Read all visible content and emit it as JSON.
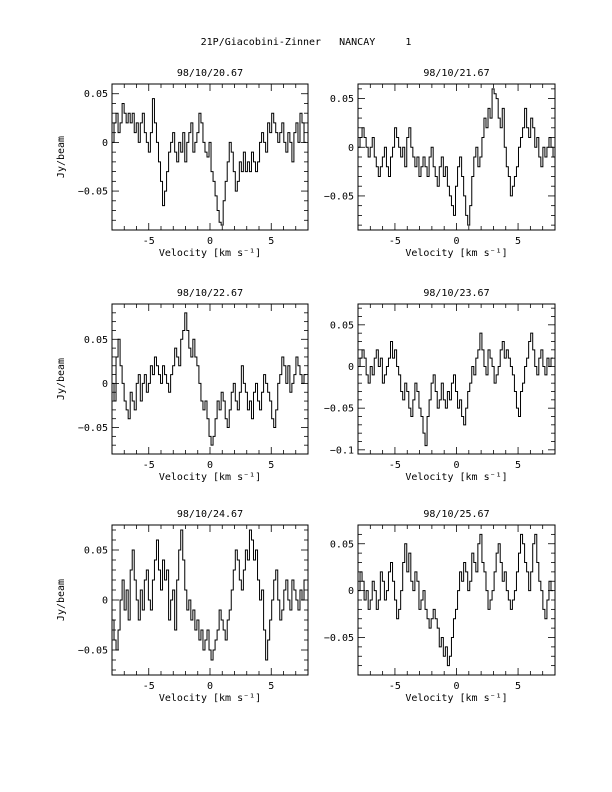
{
  "page_title": "21P/Giacobini-Zinner   NANCAY     1",
  "chart_data": [
    {
      "type": "line",
      "title": "98/10/20.67",
      "xlabel": "Velocity [km s⁻¹]",
      "ylabel": "Jy/beam",
      "xlim": [
        -8,
        8
      ],
      "ylim": [
        -0.09,
        0.06
      ],
      "x_ticks": [
        -5,
        0,
        5
      ],
      "y_ticks": [
        -0.05,
        0,
        0.05
      ],
      "y_tick_labels": [
        "−0.05",
        "0",
        "0.05"
      ],
      "series": [
        {
          "x_start": -8.0,
          "x_step": 0.165,
          "values": [
            0.0,
            0.02,
            0.03,
            0.01,
            0.02,
            0.04,
            0.03,
            0.02,
            0.03,
            0.02,
            0.03,
            0.01,
            0.02,
            0.0,
            0.02,
            0.03,
            0.01,
            0.0,
            -0.01,
            0.01,
            0.045,
            0.02,
            0.0,
            -0.02,
            -0.04,
            -0.065,
            -0.05,
            -0.03,
            -0.01,
            0.0,
            0.01,
            -0.01,
            -0.02,
            0.0,
            -0.01,
            0.01,
            -0.02,
            0.0,
            0.01,
            0.02,
            -0.01,
            0.0,
            0.01,
            0.03,
            0.02,
            0.0,
            -0.01,
            -0.015,
            0.0,
            -0.03,
            -0.04,
            -0.055,
            -0.07,
            -0.082,
            -0.085,
            -0.06,
            -0.04,
            -0.02,
            0.0,
            -0.01,
            -0.03,
            -0.05,
            -0.04,
            -0.02,
            -0.03,
            -0.01,
            -0.03,
            -0.02,
            -0.03,
            -0.01,
            -0.02,
            -0.03,
            -0.02,
            0.0,
            0.01,
            0.0,
            -0.01,
            0.02,
            0.01,
            0.03,
            0.02,
            0.01,
            0.0,
            0.01,
            0.02,
            0.0,
            -0.01,
            0.01,
            0.0,
            -0.02,
            0.01,
            0.02,
            0.0,
            0.03,
            0.02,
            0.0
          ]
        }
      ]
    },
    {
      "type": "line",
      "title": "98/10/21.67",
      "xlabel": "Velocity [km s⁻¹]",
      "ylabel": "",
      "xlim": [
        -8,
        8
      ],
      "ylim": [
        -0.085,
        0.065
      ],
      "x_ticks": [
        -5,
        0,
        5
      ],
      "y_ticks": [
        -0.05,
        0,
        0.05
      ],
      "y_tick_labels": [
        "−0.05",
        "0",
        "0.05"
      ],
      "series": [
        {
          "x_start": -8.0,
          "x_step": 0.165,
          "values": [
            0.0,
            0.01,
            0.02,
            0.01,
            0.0,
            -0.01,
            0.0,
            0.01,
            -0.01,
            -0.02,
            -0.03,
            -0.02,
            -0.01,
            0.0,
            -0.02,
            -0.03,
            -0.01,
            0.0,
            0.02,
            0.01,
            0.0,
            -0.01,
            0.0,
            -0.02,
            0.01,
            0.02,
            0.0,
            -0.01,
            -0.02,
            -0.01,
            -0.03,
            -0.02,
            -0.01,
            -0.02,
            -0.03,
            -0.01,
            0.0,
            -0.02,
            -0.03,
            -0.04,
            -0.02,
            -0.01,
            -0.03,
            -0.02,
            -0.04,
            -0.05,
            -0.06,
            -0.07,
            -0.04,
            -0.02,
            -0.01,
            -0.03,
            -0.05,
            -0.07,
            -0.08,
            -0.06,
            -0.03,
            -0.01,
            0.0,
            -0.02,
            -0.01,
            0.01,
            0.03,
            0.02,
            0.04,
            0.03,
            0.06,
            0.055,
            0.05,
            0.03,
            0.02,
            0.04,
            0.0,
            -0.02,
            -0.03,
            -0.05,
            -0.04,
            -0.03,
            -0.02,
            0.0,
            0.01,
            0.02,
            0.04,
            0.02,
            0.01,
            0.03,
            0.02,
            0.0,
            0.01,
            -0.01,
            -0.02,
            0.0,
            -0.01,
            0.0,
            0.01,
            0.0,
            -0.01
          ]
        }
      ]
    },
    {
      "type": "line",
      "title": "98/10/22.67",
      "xlabel": "Velocity [km s⁻¹]",
      "ylabel": "Jy/beam",
      "xlim": [
        -8,
        8
      ],
      "ylim": [
        -0.08,
        0.09
      ],
      "x_ticks": [
        -5,
        0,
        5
      ],
      "y_ticks": [
        -0.05,
        0,
        0.05
      ],
      "y_tick_labels": [
        "−0.05",
        "0",
        "0.05"
      ],
      "series": [
        {
          "x_start": -8.0,
          "x_step": 0.165,
          "values": [
            0.0,
            -0.02,
            0.03,
            0.05,
            0.02,
            0.0,
            -0.02,
            -0.03,
            -0.04,
            -0.01,
            -0.02,
            -0.03,
            0.0,
            0.01,
            -0.02,
            0.0,
            0.01,
            -0.01,
            0.0,
            0.02,
            0.01,
            0.03,
            0.02,
            0.01,
            0.0,
            0.02,
            0.01,
            0.0,
            -0.01,
            0.01,
            0.02,
            0.04,
            0.03,
            0.02,
            0.05,
            0.06,
            0.08,
            0.06,
            0.04,
            0.03,
            0.05,
            0.03,
            0.02,
            0.0,
            -0.02,
            -0.03,
            -0.02,
            -0.04,
            -0.06,
            -0.07,
            -0.06,
            -0.04,
            -0.02,
            -0.03,
            -0.01,
            -0.02,
            -0.04,
            -0.05,
            -0.03,
            -0.01,
            0.0,
            -0.02,
            -0.03,
            -0.01,
            0.02,
            0.0,
            -0.01,
            -0.03,
            -0.02,
            -0.04,
            -0.01,
            0.0,
            -0.02,
            -0.03,
            -0.01,
            0.01,
            0.0,
            -0.01,
            -0.02,
            -0.04,
            -0.05,
            -0.03,
            0.0,
            0.01,
            0.03,
            0.02,
            0.0,
            0.02,
            -0.01,
            0.0,
            0.01,
            0.03,
            0.02,
            0.01,
            0.0,
            0.01
          ]
        }
      ]
    },
    {
      "type": "line",
      "title": "98/10/23.67",
      "xlabel": "Velocity [km s⁻¹]",
      "ylabel": "",
      "xlim": [
        -8,
        8
      ],
      "ylim": [
        -0.105,
        0.075
      ],
      "x_ticks": [
        -5,
        0,
        5
      ],
      "y_ticks": [
        -0.1,
        -0.05,
        0,
        0.05
      ],
      "y_tick_labels": [
        "−0.1",
        "−0.05",
        "0",
        "0.05"
      ],
      "series": [
        {
          "x_start": -8.0,
          "x_step": 0.165,
          "values": [
            0.0,
            0.01,
            0.02,
            0.01,
            -0.01,
            -0.02,
            0.0,
            -0.01,
            0.01,
            0.02,
            0.0,
            0.01,
            -0.02,
            -0.01,
            0.0,
            0.01,
            0.03,
            0.01,
            0.02,
            0.0,
            -0.01,
            -0.03,
            -0.04,
            -0.02,
            -0.03,
            -0.05,
            -0.06,
            -0.04,
            -0.02,
            -0.03,
            -0.05,
            -0.06,
            -0.08,
            -0.095,
            -0.06,
            -0.04,
            -0.02,
            -0.01,
            -0.03,
            -0.05,
            -0.04,
            -0.02,
            -0.04,
            -0.05,
            -0.03,
            -0.04,
            -0.02,
            -0.01,
            -0.03,
            -0.05,
            -0.04,
            -0.06,
            -0.07,
            -0.05,
            -0.03,
            -0.02,
            0.0,
            -0.01,
            0.01,
            0.02,
            0.04,
            0.02,
            0.0,
            -0.01,
            0.02,
            0.01,
            0.0,
            -0.02,
            -0.01,
            0.0,
            0.02,
            0.03,
            0.01,
            0.02,
            0.01,
            0.0,
            -0.01,
            -0.03,
            -0.05,
            -0.06,
            -0.03,
            -0.02,
            0.0,
            0.01,
            0.03,
            0.04,
            0.02,
            0.0,
            -0.01,
            0.01,
            0.02,
            0.0,
            -0.01,
            0.01,
            0.0,
            0.01
          ]
        }
      ]
    },
    {
      "type": "line",
      "title": "98/10/24.67",
      "xlabel": "Velocity [km s⁻¹]",
      "ylabel": "Jy/beam",
      "xlim": [
        -8,
        8
      ],
      "ylim": [
        -0.075,
        0.075
      ],
      "x_ticks": [
        -5,
        0,
        5
      ],
      "y_ticks": [
        -0.05,
        0,
        0.05
      ],
      "y_tick_labels": [
        "−0.05",
        "0",
        "0.05"
      ],
      "series": [
        {
          "x_start": -8.0,
          "x_step": 0.165,
          "values": [
            -0.02,
            -0.04,
            -0.05,
            -0.03,
            0.0,
            0.02,
            -0.01,
            0.01,
            -0.02,
            0.03,
            0.05,
            0.02,
            0.0,
            -0.02,
            0.01,
            -0.01,
            0.02,
            0.03,
            0.0,
            -0.01,
            0.02,
            0.04,
            0.06,
            0.03,
            0.01,
            0.04,
            0.02,
            0.03,
            -0.02,
            0.0,
            0.01,
            -0.03,
            0.02,
            0.05,
            0.07,
            0.04,
            0.01,
            -0.01,
            0.0,
            -0.02,
            -0.01,
            -0.03,
            -0.02,
            -0.04,
            -0.03,
            -0.05,
            -0.04,
            -0.03,
            -0.05,
            -0.06,
            -0.05,
            -0.04,
            -0.03,
            -0.01,
            -0.02,
            -0.03,
            -0.04,
            -0.02,
            -0.01,
            0.01,
            0.03,
            0.05,
            0.04,
            0.02,
            0.01,
            0.03,
            0.05,
            0.04,
            0.07,
            0.06,
            0.04,
            0.05,
            0.02,
            0.0,
            0.01,
            -0.03,
            -0.06,
            -0.04,
            -0.02,
            0.0,
            0.02,
            0.03,
            0.0,
            -0.02,
            -0.01,
            0.01,
            0.02,
            0.0,
            -0.01,
            0.02,
            0.01,
            0.0,
            -0.01,
            0.01,
            0.0,
            0.02
          ]
        }
      ]
    },
    {
      "type": "line",
      "title": "98/10/25.67",
      "xlabel": "Velocity [km s⁻¹]",
      "ylabel": "",
      "xlim": [
        -8,
        8
      ],
      "ylim": [
        -0.09,
        0.07
      ],
      "x_ticks": [
        -5,
        0,
        5
      ],
      "y_ticks": [
        -0.05,
        0,
        0.05
      ],
      "y_tick_labels": [
        "−0.05",
        "0",
        "0.05"
      ],
      "series": [
        {
          "x_start": -8.0,
          "x_step": 0.165,
          "values": [
            0.0,
            0.02,
            0.01,
            -0.01,
            0.0,
            -0.02,
            -0.01,
            0.01,
            0.0,
            -0.02,
            -0.01,
            0.02,
            0.01,
            -0.01,
            0.0,
            0.02,
            0.03,
            0.01,
            -0.01,
            -0.03,
            -0.02,
            0.0,
            0.03,
            0.05,
            0.02,
            0.04,
            0.01,
            0.0,
            0.02,
            0.01,
            -0.02,
            -0.01,
            0.0,
            -0.02,
            -0.03,
            -0.04,
            -0.03,
            -0.02,
            -0.03,
            -0.04,
            -0.06,
            -0.05,
            -0.07,
            -0.06,
            -0.08,
            -0.07,
            -0.05,
            -0.03,
            -0.02,
            0.0,
            0.02,
            0.01,
            0.03,
            0.02,
            0.0,
            0.01,
            0.04,
            0.03,
            0.02,
            0.05,
            0.06,
            0.03,
            0.02,
            0.0,
            -0.02,
            -0.01,
            0.0,
            0.02,
            0.04,
            0.05,
            0.03,
            0.01,
            0.02,
            0.0,
            -0.01,
            -0.02,
            -0.01,
            0.0,
            0.02,
            0.04,
            0.06,
            0.05,
            0.03,
            0.02,
            0.0,
            0.02,
            0.05,
            0.06,
            0.03,
            0.01,
            0.0,
            -0.02,
            -0.03,
            -0.01,
            0.01,
            0.0
          ]
        }
      ]
    }
  ]
}
